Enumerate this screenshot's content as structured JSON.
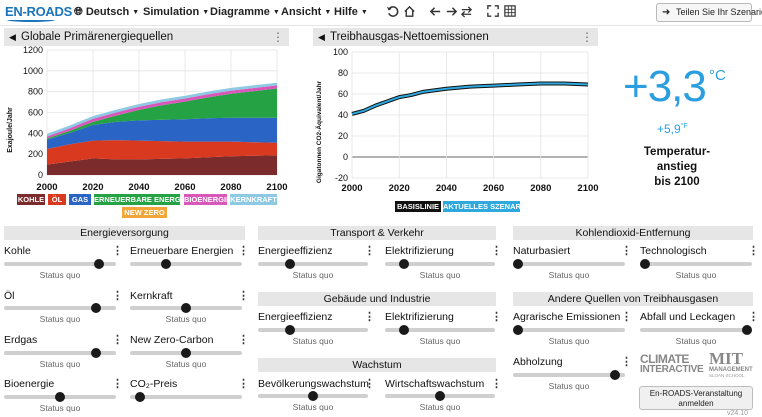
{
  "app": {
    "logo_text": "EN-ROADS",
    "menus": [
      {
        "label": "Deutsch"
      },
      {
        "label": "Simulation"
      },
      {
        "label": "Diagramme"
      },
      {
        "label": "Ansicht"
      },
      {
        "label": "Hilfe"
      }
    ],
    "share_label": "Teilen Sie Ihr Szenario"
  },
  "energy_graph": {
    "title": "Globale Primärenergiequellen",
    "ylabel": "Exajoule/Jahr",
    "yticks": [
      "1200",
      "1000",
      "800",
      "600",
      "400",
      "200",
      "0"
    ],
    "xticks": [
      "2000",
      "2020",
      "2040",
      "2060",
      "2080",
      "2100"
    ],
    "legend": [
      {
        "label": "KOHLE",
        "color": "#7b2b2b"
      },
      {
        "label": "ÖL",
        "color": "#d9391e"
      },
      {
        "label": "GAS",
        "color": "#2a64c5"
      },
      {
        "label": "ERNEUERBARE ENERGIEN",
        "color": "#25a244"
      },
      {
        "label": "BIOENERGIE",
        "color": "#d957b9"
      },
      {
        "label": "KERNKRAFT",
        "color": "#8dc9e3"
      },
      {
        "label": "NEW ZERO",
        "color": "#f2a63a"
      }
    ]
  },
  "emissions_graph": {
    "title": "Treibhausgas-Nettoemissionen",
    "ylabel": "Gigatonnen CO2-Äquivalent/Jahr",
    "yticks": [
      "100",
      "80",
      "60",
      "40",
      "20",
      "0",
      "-20"
    ],
    "xticks": [
      "2000",
      "2020",
      "2040",
      "2060",
      "2080",
      "2100"
    ],
    "legend": [
      {
        "label": "BASISLINIE",
        "color": "#111111"
      },
      {
        "label": "AKTUELLES SZENARIO",
        "color": "#2fa8de"
      }
    ]
  },
  "chart_data": [
    {
      "type": "area",
      "title": "Globale Primärenergiequellen",
      "ylabel": "Exajoule/Jahr",
      "xlim": [
        2000,
        2100
      ],
      "ylim": [
        0,
        1200
      ],
      "x": [
        2000,
        2010,
        2020,
        2030,
        2040,
        2050,
        2060,
        2070,
        2080,
        2090,
        2100
      ],
      "series": [
        {
          "name": "KOHLE",
          "values": [
            100,
            130,
            160,
            150,
            150,
            155,
            160,
            170,
            180,
            185,
            190
          ]
        },
        {
          "name": "ÖL",
          "values": [
            150,
            165,
            170,
            185,
            180,
            170,
            160,
            150,
            140,
            130,
            120
          ]
        },
        {
          "name": "GAS",
          "values": [
            90,
            110,
            150,
            175,
            195,
            205,
            215,
            225,
            230,
            235,
            240
          ]
        },
        {
          "name": "ERNEUERBARE ENERGIEN",
          "values": [
            10,
            20,
            30,
            60,
            100,
            140,
            170,
            200,
            230,
            255,
            280
          ]
        },
        {
          "name": "BIOENERGIE",
          "values": [
            20,
            25,
            30,
            30,
            30,
            30,
            30,
            30,
            30,
            30,
            30
          ]
        },
        {
          "name": "KERNKRAFT",
          "values": [
            30,
            30,
            30,
            30,
            30,
            30,
            30,
            30,
            30,
            30,
            30
          ]
        },
        {
          "name": "NEW ZERO",
          "values": [
            0,
            0,
            0,
            0,
            0,
            0,
            0,
            0,
            0,
            0,
            0
          ]
        }
      ]
    },
    {
      "type": "line",
      "title": "Treibhausgas-Nettoemissionen",
      "ylabel": "Gigatonnen CO2-Äquivalent/Jahr",
      "xlim": [
        2000,
        2100
      ],
      "ylim": [
        -20,
        100
      ],
      "x": [
        2000,
        2005,
        2010,
        2015,
        2020,
        2025,
        2030,
        2040,
        2050,
        2060,
        2070,
        2080,
        2090,
        2100
      ],
      "series": [
        {
          "name": "BASISLINIE",
          "values": [
            41,
            44,
            49,
            53,
            57,
            59,
            62,
            65,
            67,
            68,
            69,
            70,
            70,
            69
          ]
        },
        {
          "name": "AKTUELLES SZENARIO",
          "values": [
            41,
            44,
            49,
            53,
            57,
            59,
            62,
            65,
            67,
            68,
            69,
            70,
            70,
            69
          ]
        }
      ]
    }
  ],
  "temperature": {
    "value": "+3,3",
    "unit": "°C",
    "fahrenheit": "+5,9",
    "fahrenheit_unit": "°F",
    "label_line1": "Temperatur-",
    "label_line2": "anstieg",
    "label_line3": "bis 2100"
  },
  "sections": {
    "energy_supply": "Energieversorgung",
    "transport": "Transport & Verkehr",
    "co2_removal": "Kohlendioxid-Entfernung",
    "buildings": "Gebäude und Industrie",
    "other_gases": "Andere Quellen von Treibhausgasen",
    "growth": "Wachstum"
  },
  "sliders": {
    "status_label": "Status quo",
    "kohle": {
      "label": "Kohle",
      "level": 0.88
    },
    "erneuerbare": {
      "label": "Erneuerbare Energien",
      "level": 0.3
    },
    "oel": {
      "label": "Öl",
      "level": 0.85
    },
    "kernkraft": {
      "label": "Kernkraft",
      "level": 0.5
    },
    "erdgas": {
      "label": "Erdgas",
      "level": 0.85
    },
    "new_zero": {
      "label": "New Zero-Carbon",
      "level": 0.5
    },
    "bioenergie": {
      "label": "Bioenergie",
      "level": 0.5
    },
    "co2_preis": {
      "label": "CO₂-Preis",
      "level": 0.05
    },
    "transport_eff": {
      "label": "Energieeffizienz",
      "level": 0.27
    },
    "transport_elec": {
      "label": "Elektrifizierung",
      "level": 0.14
    },
    "building_eff": {
      "label": "Energieeffizienz",
      "level": 0.27
    },
    "building_elec": {
      "label": "Elektrifizierung",
      "level": 0.14
    },
    "bevoelkerung": {
      "label": "Bevölkerungswachstum",
      "level": 0.5
    },
    "wirtschaft": {
      "label": "Wirtschaftswachstum",
      "level": 0.5
    },
    "naturbasiert": {
      "label": "Naturbasiert",
      "level": 0.0
    },
    "technologisch": {
      "label": "Technologisch",
      "level": 0.0
    },
    "agrar": {
      "label": "Agrarische Emissionen",
      "level": 0.0
    },
    "abfall": {
      "label": "Abfall und Leckagen",
      "level": 1.0
    },
    "abholzung": {
      "label": "Abholzung",
      "level": 0.95
    }
  },
  "brands": {
    "climate_line1": "CLIMATE",
    "climate_line2": "INTERACTIVE",
    "mit_line1": "MIT",
    "mit_line2": "MANAGEMENT",
    "mit_line3": "SLOAN SCHOOL"
  },
  "event_button": {
    "line1": "En-ROADS-Veranstaltung",
    "line2": "anmelden"
  },
  "version": "v24.10"
}
